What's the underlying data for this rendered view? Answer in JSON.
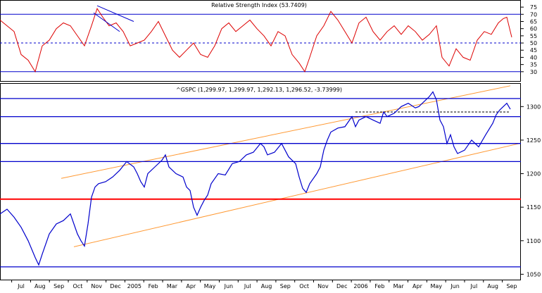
{
  "chart_data": [
    {
      "type": "line",
      "title": "Relative Strength Index (53.7409)",
      "ylim": [
        25,
        78
      ],
      "yticks": [
        30,
        35,
        40,
        45,
        50,
        55,
        60,
        65,
        70,
        75
      ],
      "reference_lines": [
        {
          "value": 70,
          "style": "solid",
          "color": "#0000cc"
        },
        {
          "value": 50,
          "style": "dashed",
          "color": "#0000cc"
        },
        {
          "value": 30,
          "style": "solid",
          "color": "#0000cc"
        }
      ],
      "series": [
        {
          "color": "#dd0000",
          "x": [
            0,
            10,
            20,
            30,
            40,
            50,
            60,
            70,
            80,
            90,
            100,
            110,
            120,
            130,
            138,
            146,
            155,
            165,
            175,
            185,
            195,
            205,
            215,
            225,
            235,
            245,
            255,
            265,
            275,
            285,
            295,
            305,
            315,
            325,
            335,
            345,
            355,
            365,
            375,
            385,
            395,
            405,
            415,
            425,
            433,
            440,
            450,
            460,
            470,
            480,
            490,
            500,
            510,
            520,
            530,
            540,
            550,
            560,
            570,
            580,
            590,
            600,
            610,
            620,
            628,
            638,
            648,
            658,
            668,
            678,
            688,
            698,
            708,
            715,
            720,
            727
          ],
          "values": [
            66,
            62,
            58,
            42,
            38,
            30,
            48,
            52,
            60,
            64,
            62,
            55,
            48,
            62,
            74,
            68,
            62,
            64,
            58,
            48,
            50,
            52,
            58,
            65,
            55,
            45,
            40,
            45,
            50,
            42,
            40,
            48,
            60,
            64,
            58,
            62,
            66,
            60,
            55,
            48,
            58,
            55,
            42,
            36,
            30,
            40,
            55,
            62,
            72,
            66,
            58,
            50,
            64,
            68,
            58,
            52,
            58,
            62,
            56,
            62,
            58,
            52,
            56,
            62,
            40,
            34,
            46,
            40,
            38,
            52,
            58,
            56,
            64,
            67,
            68,
            54
          ]
        }
      ],
      "annotations": [
        {
          "type": "trend-line",
          "x": [
            138,
            190
          ],
          "values": [
            76,
            65
          ]
        },
        {
          "type": "trend-line",
          "x": [
            133,
            170
          ],
          "values": [
            71,
            58
          ]
        }
      ]
    },
    {
      "type": "line",
      "title": "^GSPC (1,299.97, 1,299.97, 1,292.13, 1,296.52, -3.73999)",
      "ylim": [
        1042,
        1335
      ],
      "yticks": [
        1050,
        1100,
        1150,
        1200,
        1250,
        1300
      ],
      "xticklabels": [
        "Jul",
        "Aug",
        "Sep",
        "Oct",
        "Nov",
        "Dec",
        "2005",
        "Feb",
        "Mar",
        "Apr",
        "May",
        "Jun",
        "Jul",
        "Aug",
        "Sep",
        "Oct",
        "Nov",
        "Dec",
        "2006",
        "Feb",
        "Mar",
        "Apr",
        "May",
        "Jun",
        "Jul",
        "Aug",
        "Sep"
      ],
      "support_resistance_lines": [
        {
          "value": 1312,
          "color": "#0000cc"
        },
        {
          "value": 1285,
          "color": "#0000cc"
        },
        {
          "value": 1245,
          "color": "#0000cc"
        },
        {
          "value": 1218,
          "color": "#0000cc"
        },
        {
          "value": 1162,
          "color": "#ff0000"
        },
        {
          "value": 1061,
          "color": "#0000cc"
        }
      ],
      "dashed_lines": [
        {
          "x": [
            505,
            725
          ],
          "value": 1292
        }
      ],
      "channel_lines": [
        {
          "x": [
            87,
            725
          ],
          "values": [
            1193,
            1331
          ],
          "color": "#ff9933"
        },
        {
          "x": [
            105,
            738
          ],
          "values": [
            1091,
            1245
          ],
          "color": "#ff9933"
        }
      ],
      "series": [
        {
          "type": "line",
          "color": "#0000cc",
          "x": [
            0,
            10,
            20,
            30,
            40,
            50,
            55,
            60,
            70,
            80,
            90,
            100,
            105,
            110,
            115,
            120,
            125,
            130,
            135,
            140,
            150,
            160,
            170,
            180,
            190,
            195,
            200,
            205,
            210,
            220,
            230,
            235,
            240,
            250,
            260,
            265,
            270,
            275,
            280,
            285,
            290,
            295,
            300,
            310,
            320,
            330,
            340,
            350,
            360,
            370,
            375,
            380,
            390,
            400,
            405,
            410,
            420,
            425,
            430,
            435,
            440,
            450,
            455,
            460,
            465,
            470,
            480,
            490,
            500,
            505,
            510,
            520,
            530,
            540,
            545,
            550,
            560,
            570,
            580,
            590,
            595,
            600,
            605,
            610,
            615,
            620,
            625,
            630,
            635,
            640,
            645,
            650,
            660,
            670,
            680,
            690,
            700,
            705,
            710,
            715,
            720,
            725
          ],
          "values": [
            1140,
            1147,
            1135,
            1120,
            1100,
            1075,
            1064,
            1080,
            1110,
            1125,
            1130,
            1140,
            1125,
            1110,
            1100,
            1092,
            1125,
            1165,
            1180,
            1185,
            1188,
            1195,
            1205,
            1218,
            1210,
            1200,
            1188,
            1180,
            1200,
            1210,
            1220,
            1228,
            1210,
            1200,
            1195,
            1180,
            1175,
            1150,
            1138,
            1150,
            1160,
            1168,
            1185,
            1200,
            1198,
            1215,
            1218,
            1228,
            1232,
            1245,
            1240,
            1228,
            1232,
            1245,
            1235,
            1225,
            1215,
            1195,
            1178,
            1172,
            1185,
            1200,
            1210,
            1235,
            1250,
            1262,
            1268,
            1270,
            1285,
            1270,
            1280,
            1285,
            1280,
            1275,
            1292,
            1285,
            1290,
            1300,
            1305,
            1298,
            1300,
            1305,
            1310,
            1315,
            1322,
            1310,
            1280,
            1270,
            1245,
            1258,
            1240,
            1230,
            1235,
            1250,
            1240,
            1258,
            1275,
            1288,
            1295,
            1300,
            1305,
            1296
          ]
        }
      ]
    }
  ]
}
